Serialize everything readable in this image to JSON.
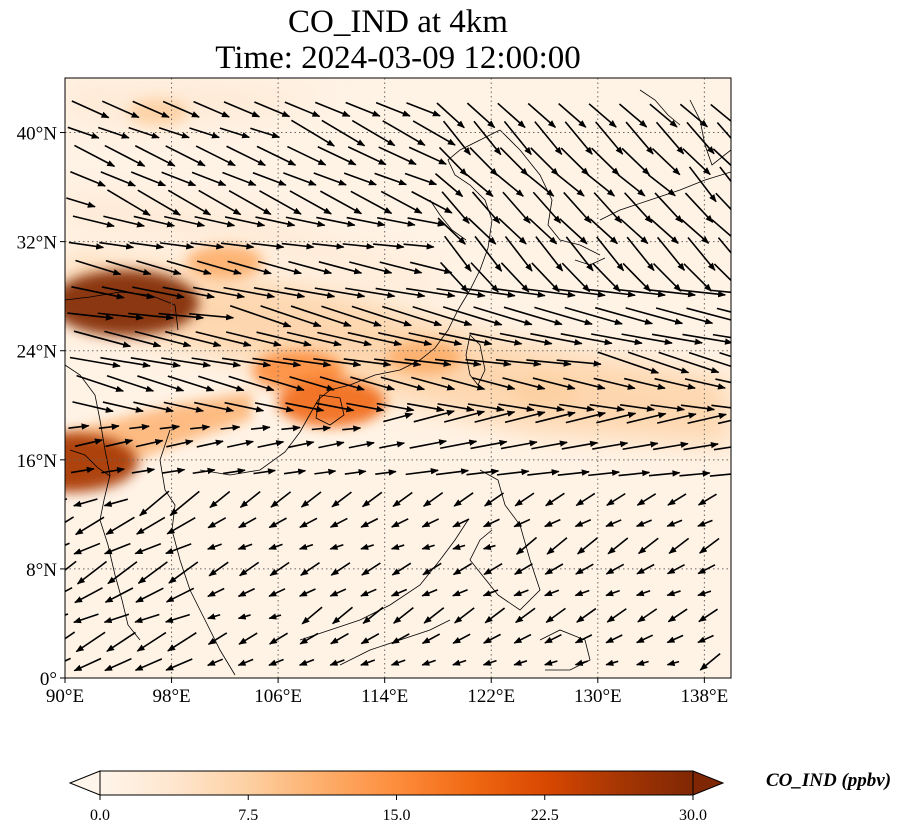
{
  "title": {
    "line1": "CO_IND at 4km",
    "line2": "Time: 2024-03-09 12:00:00"
  },
  "map": {
    "lon_range": [
      90,
      140
    ],
    "lat_range": [
      0,
      44
    ],
    "x_ticks": [
      "90°E",
      "98°E",
      "106°E",
      "114°E",
      "122°E",
      "130°E",
      "138°E"
    ],
    "y_ticks": [
      "0°",
      "8°N",
      "16°N",
      "24°N",
      "32°N",
      "40°N"
    ],
    "grid": true,
    "variable": "CO_IND"
  },
  "colorbar": {
    "label": "CO_IND (ppbv)",
    "ticks": [
      "0.0",
      "7.5",
      "15.0",
      "22.5",
      "30.0"
    ],
    "range": [
      0,
      30
    ],
    "extend": "both",
    "colormap": [
      "#fff5eb",
      "#fee6ce",
      "#fdd0a2",
      "#fdae6b",
      "#fd8d3c",
      "#f16913",
      "#d94801",
      "#a63603",
      "#7f2704"
    ]
  },
  "chart_data": {
    "type": "heatmap",
    "title": "CO_IND at 4km",
    "subtitle": "Time: 2024-03-09 12:00:00",
    "xlim": [
      90,
      140
    ],
    "ylim": [
      0,
      44
    ],
    "value_range": [
      0,
      30
    ],
    "hotspots": [
      {
        "lon": 94.5,
        "lat": 27.5,
        "value": 30
      },
      {
        "lon": 90.5,
        "lat": 15.8,
        "value": 26
      },
      {
        "lon": 107.5,
        "lat": 22.5,
        "value": 16
      },
      {
        "lon": 110.0,
        "lat": 20.2,
        "value": 20
      },
      {
        "lon": 102.0,
        "lat": 30.5,
        "value": 12
      },
      {
        "lon": 117.0,
        "lat": 23.5,
        "value": 12
      },
      {
        "lon": 126.0,
        "lat": 21.0,
        "value": 9
      },
      {
        "lon": 97.0,
        "lat": 41.5,
        "value": 8
      }
    ],
    "wind_regions": [
      {
        "region": "north (lat > 20)",
        "direction": "westerly to west-northwesterly"
      },
      {
        "region": "northeast (lon > 118, lat > 30)",
        "direction": "northwesterly"
      },
      {
        "region": "south (lat < 16)",
        "direction": "easterly to northeasterly"
      }
    ]
  }
}
